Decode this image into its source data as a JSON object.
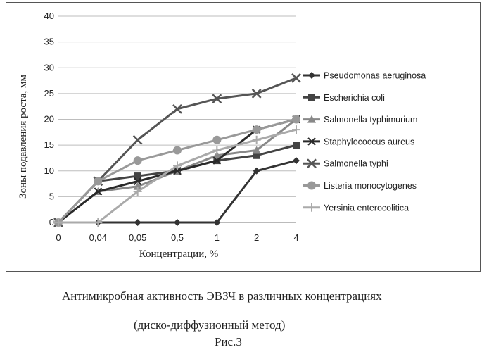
{
  "chart_data": {
    "type": "line",
    "categories": [
      "0",
      "0,04",
      "0,05",
      "0,5",
      "1",
      "2",
      "4"
    ],
    "ylabel": "Зоны подавления роста, мм",
    "xlabel": "Концентрации, %",
    "ylim": [
      0,
      40
    ],
    "yticks": [
      0,
      5,
      10,
      15,
      20,
      25,
      30,
      35,
      40
    ],
    "grid": "horizontal",
    "legend_position": "right",
    "series": [
      {
        "name": "Pseudomonas aeruginosa",
        "marker": "diamond",
        "color": "#333333",
        "values": [
          0,
          0,
          0,
          0,
          0,
          10,
          12
        ]
      },
      {
        "name": "Escherichia coli",
        "marker": "square",
        "color": "#444444",
        "values": [
          0,
          8,
          9,
          10,
          12,
          13,
          15
        ]
      },
      {
        "name": "Salmonella typhimurium",
        "marker": "triangle",
        "color": "#888888",
        "values": [
          0,
          6,
          7,
          10,
          13,
          14,
          20
        ]
      },
      {
        "name": "Staphylococcus aureus",
        "marker": "x",
        "color": "#2a2a2a",
        "values": [
          0,
          6,
          8,
          10,
          12,
          18,
          20
        ]
      },
      {
        "name": "Salmonella typhi",
        "marker": "cross",
        "color": "#555555",
        "values": [
          0,
          8,
          16,
          22,
          24,
          25,
          28
        ]
      },
      {
        "name": "Listeria  monocytogenes",
        "marker": "circle",
        "color": "#999999",
        "values": [
          0,
          8,
          12,
          14,
          16,
          18,
          20
        ]
      },
      {
        "name": "Yersinia enterocolitica",
        "marker": "plus",
        "color": "#aaaaaa",
        "values": [
          0,
          0,
          6,
          11,
          14,
          16,
          18
        ]
      }
    ]
  },
  "caption": {
    "line1": "Антимикробная активность ЭВЗЧ в различных концентрациях",
    "line2": "(диско-диффузионный метод)",
    "line3": "Рис.3"
  }
}
